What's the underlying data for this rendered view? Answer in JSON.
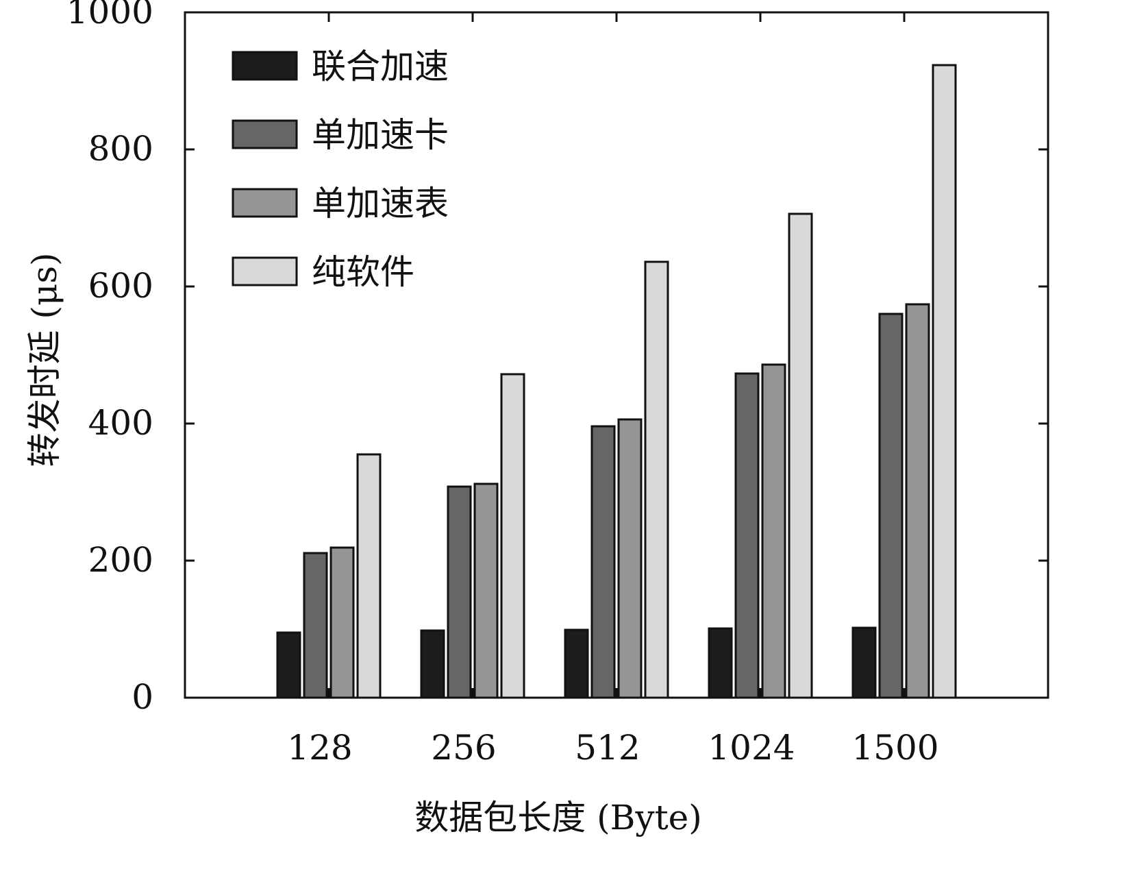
{
  "chart_data": {
    "type": "bar",
    "title": "",
    "xlabel": "数据包长度 (Byte)",
    "ylabel": "转发时延 (μs)",
    "categories": [
      "128",
      "256",
      "512",
      "1024",
      "1500"
    ],
    "ylim": [
      0,
      1000
    ],
    "yticks": [
      0,
      200,
      400,
      600,
      800,
      1000
    ],
    "grid": false,
    "legend_position": "top-left",
    "series": [
      {
        "name": "联合加速",
        "color": "#1c1c1c",
        "values": [
          95,
          98,
          99,
          101,
          102
        ]
      },
      {
        "name": "单加速卡",
        "color": "#666666",
        "values": [
          211,
          308,
          396,
          473,
          560
        ]
      },
      {
        "name": "单加速表",
        "color": "#959595",
        "values": [
          219,
          312,
          406,
          486,
          574
        ]
      },
      {
        "name": "纯软件",
        "color": "#d9d9d9",
        "values": [
          355,
          472,
          636,
          706,
          923
        ]
      }
    ]
  }
}
